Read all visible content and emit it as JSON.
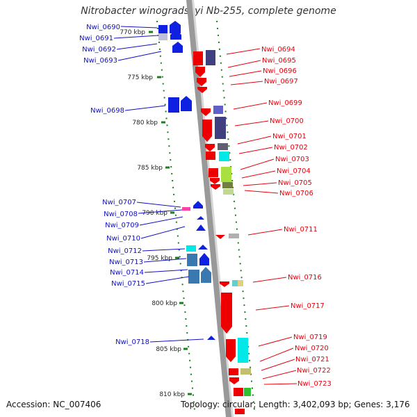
{
  "title": "Nitrobacter winogradskyi Nb-255, complete genome",
  "footer": {
    "accession": "Accession: NC_007406",
    "summary": "Topology: circular; Length: 3,402,093 bp; Genes: 3,176"
  },
  "colors": {
    "forward_label": "#e8000b",
    "reverse_label": "#1010c0",
    "ruler_dash": "#1a7f1a",
    "backbone": "#888888"
  },
  "scale_labels": [
    "770 kbp",
    "775 kbp",
    "780 kbp",
    "785 kbp",
    "790 kbp",
    "795 kbp",
    "800 kbp",
    "805 kbp",
    "810 kbp"
  ],
  "genes_left": [
    "Nwi_0690",
    "Nwi_0691",
    "Nwi_0692",
    "Nwi_0693",
    "Nwi_0698",
    "Nwi_0707",
    "Nwi_0708",
    "Nwi_0709",
    "Nwi_0710",
    "Nwi_0712",
    "Nwi_0713",
    "Nwi_0714",
    "Nwi_0715",
    "Nwi_0718"
  ],
  "genes_right": [
    "Nwi_0694",
    "Nwi_0695",
    "Nwi_0696",
    "Nwi_0697",
    "Nwi_0699",
    "Nwi_0700",
    "Nwi_0701",
    "Nwi_0702",
    "Nwi_0703",
    "Nwi_0704",
    "Nwi_0705",
    "Nwi_0706",
    "Nwi_0711",
    "Nwi_0716",
    "Nwi_0717",
    "Nwi_0719",
    "Nwi_0720",
    "Nwi_0721",
    "Nwi_0722",
    "Nwi_0723"
  ]
}
